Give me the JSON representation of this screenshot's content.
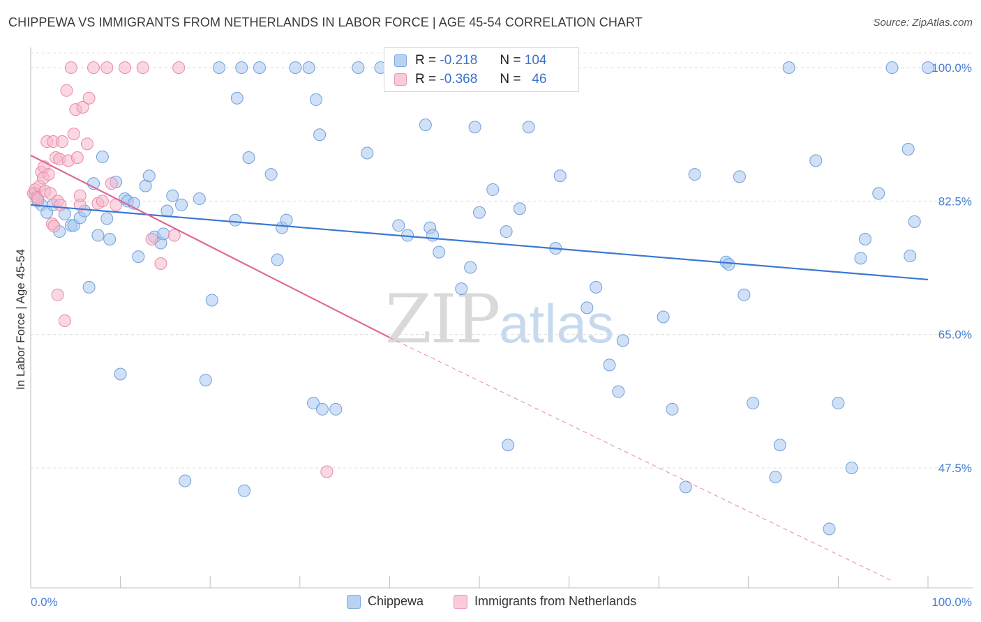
{
  "header": {
    "title": "CHIPPEWA VS IMMIGRANTS FROM NETHERLANDS IN LABOR FORCE | AGE 45-54 CORRELATION CHART",
    "source": "Source: ZipAtlas.com"
  },
  "watermark": {
    "zip": "ZIP",
    "atlas": "atlas"
  },
  "legend": {
    "rows": [
      {
        "r_label": "R =",
        "r_value": "-0.218",
        "n_label": "N =",
        "n_value": "104",
        "color": "#a9c7ee"
      },
      {
        "r_label": "R =",
        "r_value": "-0.368",
        "n_label": "N =",
        "n_value": "46",
        "color": "#f5b7c9"
      }
    ]
  },
  "bottom_legend": {
    "items": [
      {
        "label": "Chippewa",
        "color": "#a9c7ee"
      },
      {
        "label": "Immigrants from Netherlands",
        "color": "#f5b7c9"
      }
    ]
  },
  "chart_data": {
    "type": "scatter",
    "title": "CHIPPEWA VS IMMIGRANTS FROM NETHERLANDS IN LABOR FORCE | AGE 45-54 CORRELATION CHART",
    "ylabel": "In Labor Force | Age 45-54",
    "xlabel": "",
    "xlim": [
      0,
      100
    ],
    "ylim": [
      31,
      102
    ],
    "x_ticks_labels": [
      "0.0%",
      "100.0%"
    ],
    "y_ticks": [
      47.5,
      65.0,
      82.5,
      100.0
    ],
    "y_tick_labels": [
      "47.5%",
      "65.0%",
      "82.5%",
      "100.0%"
    ],
    "grid": "horizontal dashed",
    "legend_position": "top-center",
    "series": [
      {
        "name": "Chippewa",
        "color": "#a9c7ee",
        "stroke": "#6f9fdc",
        "trend": {
          "x": [
            0,
            100
          ],
          "y": [
            82.0,
            72.2
          ],
          "color": "#3a78d4"
        },
        "points": [
          [
            0.5,
            83.5
          ],
          [
            0.8,
            82.5
          ],
          [
            1.2,
            82.0
          ],
          [
            1.8,
            81.0
          ],
          [
            2.5,
            82.0
          ],
          [
            3.2,
            78.5
          ],
          [
            3.8,
            80.8
          ],
          [
            4.5,
            79.3
          ],
          [
            4.8,
            79.3
          ],
          [
            5.5,
            80.3
          ],
          [
            6.0,
            81.2
          ],
          [
            6.5,
            71.2
          ],
          [
            7.0,
            84.8
          ],
          [
            7.5,
            78.0
          ],
          [
            8.0,
            88.3
          ],
          [
            8.5,
            80.2
          ],
          [
            8.8,
            77.5
          ],
          [
            9.5,
            85.0
          ],
          [
            10.0,
            59.8
          ],
          [
            10.5,
            82.8
          ],
          [
            10.8,
            82.5
          ],
          [
            11.5,
            82.2
          ],
          [
            12.0,
            75.2
          ],
          [
            12.8,
            84.5
          ],
          [
            13.2,
            85.8
          ],
          [
            13.8,
            77.8
          ],
          [
            14.5,
            77.0
          ],
          [
            14.8,
            78.2
          ],
          [
            15.2,
            81.2
          ],
          [
            15.8,
            83.2
          ],
          [
            16.8,
            82.0
          ],
          [
            17.2,
            45.8
          ],
          [
            18.8,
            82.8
          ],
          [
            19.5,
            59.0
          ],
          [
            20.2,
            69.5
          ],
          [
            21.0,
            100.0
          ],
          [
            22.8,
            80.0
          ],
          [
            23.0,
            96.0
          ],
          [
            23.5,
            100.0
          ],
          [
            23.8,
            44.5
          ],
          [
            24.3,
            88.2
          ],
          [
            25.5,
            100.0
          ],
          [
            26.8,
            86.0
          ],
          [
            27.5,
            74.8
          ],
          [
            28.0,
            79.0
          ],
          [
            28.5,
            80.0
          ],
          [
            29.5,
            100.0
          ],
          [
            31.0,
            100.0
          ],
          [
            31.5,
            56.0
          ],
          [
            31.8,
            95.8
          ],
          [
            32.2,
            91.2
          ],
          [
            32.5,
            55.2
          ],
          [
            34.0,
            55.2
          ],
          [
            36.5,
            100.0
          ],
          [
            37.5,
            88.8
          ],
          [
            39.0,
            100.0
          ],
          [
            41.0,
            79.3
          ],
          [
            42.0,
            78.0
          ],
          [
            44.0,
            92.5
          ],
          [
            44.5,
            79.0
          ],
          [
            44.8,
            78.0
          ],
          [
            45.5,
            75.8
          ],
          [
            46.0,
            100.0
          ],
          [
            48.0,
            71.0
          ],
          [
            49.0,
            73.8
          ],
          [
            49.5,
            92.2
          ],
          [
            50.0,
            81.0
          ],
          [
            51.5,
            84.0
          ],
          [
            53.0,
            78.5
          ],
          [
            53.2,
            50.5
          ],
          [
            54.5,
            81.5
          ],
          [
            55.5,
            92.2
          ],
          [
            58.5,
            76.3
          ],
          [
            59.0,
            85.8
          ],
          [
            62.0,
            68.5
          ],
          [
            63.0,
            71.2
          ],
          [
            64.5,
            61.0
          ],
          [
            65.5,
            57.5
          ],
          [
            66.0,
            64.2
          ],
          [
            70.5,
            67.3
          ],
          [
            71.5,
            55.2
          ],
          [
            73.0,
            45.0
          ],
          [
            74.0,
            86.0
          ],
          [
            77.5,
            74.5
          ],
          [
            77.8,
            74.2
          ],
          [
            79.0,
            85.7
          ],
          [
            79.5,
            70.2
          ],
          [
            80.5,
            56.0
          ],
          [
            83.5,
            50.5
          ],
          [
            83.0,
            46.3
          ],
          [
            84.5,
            100.0
          ],
          [
            87.5,
            87.8
          ],
          [
            89.0,
            39.5
          ],
          [
            90.0,
            56.0
          ],
          [
            91.5,
            47.5
          ],
          [
            92.5,
            75.0
          ],
          [
            93.0,
            77.5
          ],
          [
            94.5,
            83.5
          ],
          [
            96.0,
            100.0
          ],
          [
            97.8,
            89.3
          ],
          [
            98.0,
            75.3
          ],
          [
            98.5,
            79.8
          ],
          [
            100.0,
            100.0
          ]
        ]
      },
      {
        "name": "Immigrants from Netherlands",
        "color": "#f5b7c9",
        "stroke": "#e98aa8",
        "trend": {
          "x": [
            0,
            40
          ],
          "y": [
            88.5,
            64.6
          ],
          "color": "#e0679a",
          "dashed_extension_to": [
            96,
            31
          ]
        },
        "points": [
          [
            0.3,
            83.5
          ],
          [
            0.5,
            84.0
          ],
          [
            0.7,
            83.0
          ],
          [
            0.8,
            82.8
          ],
          [
            1.0,
            84.5
          ],
          [
            1.2,
            86.3
          ],
          [
            1.4,
            85.5
          ],
          [
            1.5,
            87.0
          ],
          [
            1.6,
            83.8
          ],
          [
            1.8,
            90.3
          ],
          [
            2.0,
            86.0
          ],
          [
            2.2,
            83.5
          ],
          [
            2.4,
            79.5
          ],
          [
            2.5,
            90.3
          ],
          [
            2.6,
            79.2
          ],
          [
            2.8,
            88.2
          ],
          [
            3.0,
            82.5
          ],
          [
            3.0,
            70.2
          ],
          [
            3.2,
            88.0
          ],
          [
            3.3,
            82.0
          ],
          [
            3.5,
            90.3
          ],
          [
            3.8,
            66.8
          ],
          [
            4.0,
            97.0
          ],
          [
            4.2,
            87.8
          ],
          [
            4.5,
            100.0
          ],
          [
            4.8,
            91.3
          ],
          [
            5.0,
            94.5
          ],
          [
            5.2,
            88.2
          ],
          [
            5.5,
            82.0
          ],
          [
            5.5,
            83.2
          ],
          [
            5.8,
            94.8
          ],
          [
            6.3,
            90.0
          ],
          [
            6.5,
            96.0
          ],
          [
            7.0,
            100.0
          ],
          [
            7.5,
            82.2
          ],
          [
            8.0,
            82.5
          ],
          [
            8.5,
            100.0
          ],
          [
            9.0,
            84.8
          ],
          [
            9.5,
            82.0
          ],
          [
            10.5,
            100.0
          ],
          [
            12.5,
            100.0
          ],
          [
            13.5,
            77.5
          ],
          [
            14.5,
            74.3
          ],
          [
            16.0,
            78.0
          ],
          [
            16.5,
            100.0
          ],
          [
            33.0,
            47.0
          ]
        ]
      }
    ]
  }
}
